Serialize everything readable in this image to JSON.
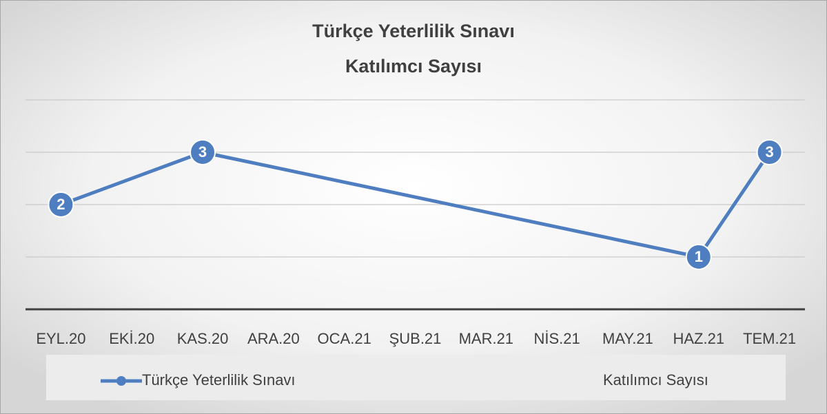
{
  "chart_data": {
    "type": "line",
    "title_lines": [
      "Türkçe Yeterlilik Sınavı",
      "Katılımcı Sayısı"
    ],
    "categories": [
      "EYL.20",
      "EKİ.20",
      "KAS.20",
      "ARA.20",
      "OCA.21",
      "ŞUB.21",
      "MAR.21",
      "NİS.21",
      "MAY.21",
      "HAZ.21",
      "TEM.21"
    ],
    "series": [
      {
        "name": "Türkçe Yeterlilik Sınavı",
        "color": "#4e7ec0",
        "values": [
          2,
          null,
          3,
          null,
          null,
          null,
          null,
          null,
          null,
          1,
          3
        ]
      }
    ],
    "legend_label": "Katılımcı Sayısı",
    "ylim": [
      0,
      4
    ],
    "yticks": [
      0,
      1,
      2,
      3,
      4
    ],
    "ytick_labels": false,
    "grid": true,
    "connect_gaps": true,
    "data_labels": true
  }
}
